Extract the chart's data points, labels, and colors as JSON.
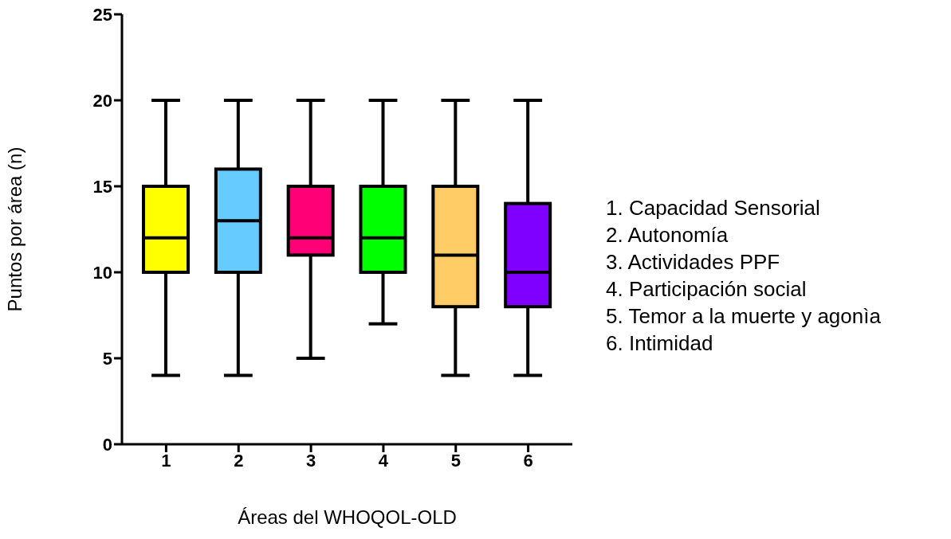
{
  "chart_data": {
    "type": "box",
    "xlabel": "Áreas del WHOQOL-OLD",
    "ylabel": "Puntos por área (n)",
    "categories": [
      "1",
      "2",
      "3",
      "4",
      "5",
      "6"
    ],
    "boxes": [
      {
        "low": 4,
        "q1": 10,
        "median": 12,
        "q3": 15,
        "high": 20
      },
      {
        "low": 4,
        "q1": 10,
        "median": 13,
        "q3": 16,
        "high": 20
      },
      {
        "low": 5,
        "q1": 11,
        "median": 12,
        "q3": 15,
        "high": 20
      },
      {
        "low": 7,
        "q1": 10,
        "median": 12,
        "q3": 15,
        "high": 20
      },
      {
        "low": 4,
        "q1": 8,
        "median": 11,
        "q3": 15,
        "high": 20
      },
      {
        "low": 4,
        "q1": 8,
        "median": 10,
        "q3": 14,
        "high": 20
      }
    ],
    "colors": [
      "#ffff00",
      "#66ccff",
      "#ff0077",
      "#00ff00",
      "#ffcc66",
      "#8000ff"
    ],
    "ylim": [
      0,
      25
    ],
    "yticks": [
      0,
      5,
      10,
      15,
      20,
      25
    ],
    "grid": false,
    "legend": false,
    "annotations": [
      "1. Capacidad Sensorial",
      "2. Autonomía",
      "3. Actividades PPF",
      "4. Participación social",
      "5. Temor a la muerte y agonìa",
      "6. Intimidad"
    ]
  }
}
